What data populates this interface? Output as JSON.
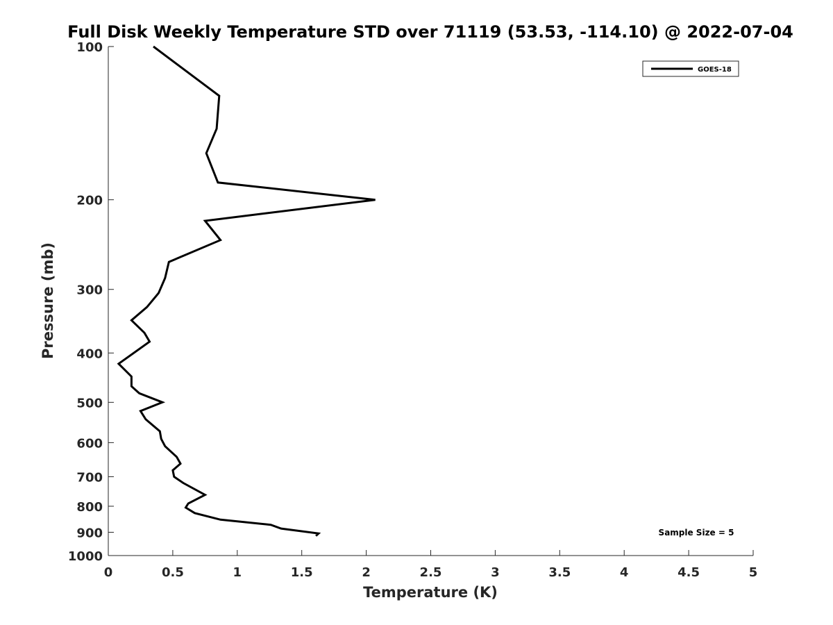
{
  "chart_data": {
    "type": "line",
    "title": "Full Disk Weekly Temperature STD over 71119 (53.53, -114.10) @ 2022-07-04",
    "xlabel": "Temperature (K)",
    "ylabel": "Pressure (mb)",
    "xlim": [
      0,
      5
    ],
    "ylim": [
      1000,
      100
    ],
    "yscale": "log",
    "xticks": [
      "0",
      "0.5",
      "1",
      "1.5",
      "2",
      "2.5",
      "3",
      "3.5",
      "4",
      "4.5",
      "5"
    ],
    "yticks": [
      "100",
      "200",
      "300",
      "400",
      "500",
      "600",
      "700",
      "800",
      "900",
      "1000"
    ],
    "grid": false,
    "legend_position": "top-right",
    "annotation": "Sample Size = 5",
    "series": [
      {
        "name": "GOES-18",
        "color": "#000000",
        "x": [
          0.35,
          0.86,
          0.84,
          0.76,
          0.85,
          2.07,
          0.75,
          0.87,
          0.47,
          0.44,
          0.39,
          0.3,
          0.18,
          0.28,
          0.32,
          0.08,
          0.18,
          0.18,
          0.24,
          0.42,
          0.25,
          0.29,
          0.4,
          0.41,
          0.44,
          0.53,
          0.56,
          0.5,
          0.51,
          0.58,
          0.75,
          0.62,
          0.6,
          0.67,
          0.87,
          1.26,
          1.34,
          1.63,
          1.61
        ],
        "y": [
          100,
          125,
          145,
          162,
          185,
          200,
          220,
          240,
          265,
          285,
          305,
          325,
          345,
          365,
          380,
          420,
          445,
          465,
          480,
          500,
          520,
          540,
          570,
          590,
          610,
          640,
          660,
          680,
          700,
          720,
          760,
          790,
          805,
          825,
          850,
          870,
          885,
          905,
          915
        ]
      }
    ]
  }
}
